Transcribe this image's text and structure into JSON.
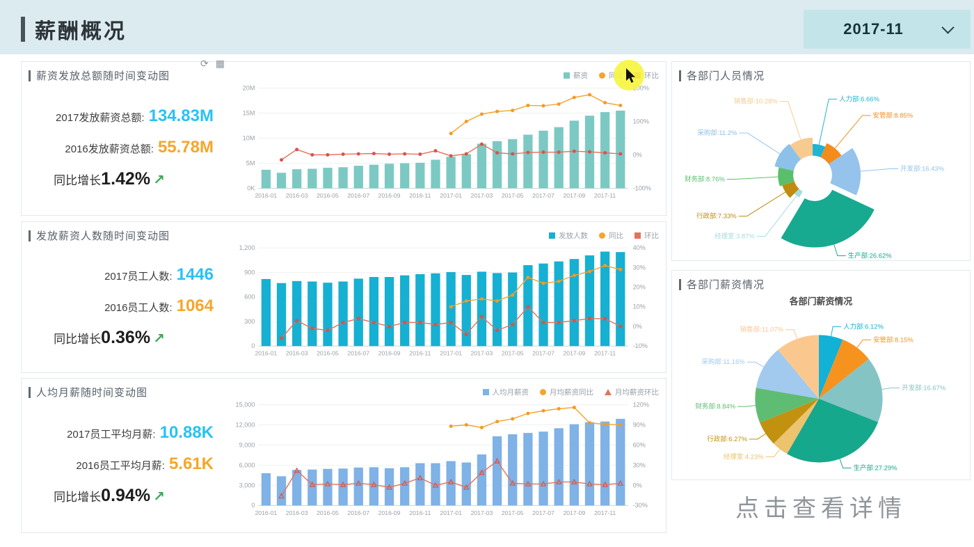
{
  "header": {
    "title": "薪酬概况"
  },
  "date_selector": {
    "value": "2017-11"
  },
  "toolbar": {
    "refresh": "⟳",
    "grid": "▦"
  },
  "footer": {
    "detail_link": "点击查看详情"
  },
  "colors": {
    "stat2017": "#29c1f5",
    "stat2016": "#f7a628",
    "growth_arrow_green": "#3aa857",
    "header_bg": "#dcebf0",
    "date_box_bg": "#c3e5e9"
  },
  "left_panels": [
    {
      "title": "薪资发放总额随时间变动图",
      "stats": [
        {
          "label": "2017发放薪资总额:",
          "value": "134.83M"
        },
        {
          "label": "2016发放薪资总额:",
          "value": "55.78M"
        }
      ],
      "growth": {
        "label": "同比增长",
        "value": "1.42%",
        "arrow": "↗"
      }
    },
    {
      "title": "发放薪资人数随时间变动图",
      "stats": [
        {
          "label": "2017员工人数:",
          "value": "1446"
        },
        {
          "label": "2016员工人数:",
          "value": "1064"
        }
      ],
      "growth": {
        "label": "同比增长",
        "value": "0.36%",
        "arrow": "↗"
      }
    },
    {
      "title": "人均月薪随时间变动图",
      "stats": [
        {
          "label": "2017员工平均月薪:",
          "value": "10.88K"
        },
        {
          "label": "2016员工平均月薪:",
          "value": "5.61K"
        }
      ],
      "growth": {
        "label": "同比增长",
        "value": "0.94%",
        "arrow": "↗"
      }
    }
  ],
  "right_panels": [
    {
      "title": "各部门人员情况"
    },
    {
      "title": "各部门薪资情况"
    }
  ],
  "chart_data": [
    {
      "id": "salary-total-trend",
      "type": "bar",
      "categories": [
        "2016-01",
        "2016-02",
        "2016-03",
        "2016-04",
        "2016-05",
        "2016-06",
        "2016-07",
        "2016-08",
        "2016-09",
        "2016-10",
        "2016-11",
        "2016-12",
        "2017-01",
        "2017-02",
        "2017-03",
        "2017-04",
        "2017-05",
        "2017-06",
        "2017-07",
        "2017-08",
        "2017-09",
        "2017-10",
        "2017-11",
        "2017-12"
      ],
      "left_ticks": [
        "0K",
        "5M",
        "10M",
        "15M",
        "20M"
      ],
      "left_range": [
        0,
        20
      ],
      "right_ticks": [
        "-100%",
        "0%",
        "100%",
        "200%"
      ],
      "right_range": [
        -100,
        200
      ],
      "series": [
        {
          "name": "薪资",
          "type": "bar",
          "axis": "left",
          "color": "#7cc9c4",
          "values": [
            3.7,
            3.1,
            3.8,
            3.9,
            4.1,
            4.2,
            4.5,
            4.7,
            4.9,
            5.0,
            5.1,
            5.7,
            6.3,
            6.8,
            8.9,
            9.4,
            9.8,
            10.7,
            11.5,
            12.2,
            13.5,
            14.5,
            15.2,
            15.5
          ]
        },
        {
          "name": "同比",
          "type": "line",
          "axis": "right",
          "color": "#f5a42c",
          "mcolor": "#f59a23",
          "marker": "circle",
          "values": [
            null,
            null,
            null,
            null,
            null,
            null,
            null,
            null,
            null,
            null,
            null,
            null,
            64,
            100,
            122,
            130,
            133,
            148,
            147,
            152,
            172,
            180,
            156,
            148
          ]
        },
        {
          "name": "环比",
          "type": "line",
          "axis": "right",
          "color": "#e2735e",
          "mcolor": "#d9534a",
          "marker": "circle",
          "values": [
            null,
            -15,
            16,
            0,
            0,
            2,
            3,
            4,
            2,
            3,
            2,
            12,
            -3,
            3,
            32,
            6,
            3,
            7,
            8,
            8,
            11,
            9,
            6,
            3
          ]
        }
      ]
    },
    {
      "id": "headcount-trend",
      "type": "bar",
      "categories": [
        "2016-01",
        "2016-02",
        "2016-03",
        "2016-04",
        "2016-05",
        "2016-06",
        "2016-07",
        "2016-08",
        "2016-09",
        "2016-10",
        "2016-11",
        "2016-12",
        "2017-01",
        "2017-02",
        "2017-03",
        "2017-04",
        "2017-05",
        "2017-06",
        "2017-07",
        "2017-08",
        "2017-09",
        "2017-10",
        "2017-11",
        "2017-12"
      ],
      "left_ticks": [
        "0",
        "300",
        "600",
        "900",
        "1,200"
      ],
      "left_range": [
        0,
        1200
      ],
      "right_ticks": [
        "-10%",
        "0%",
        "10%",
        "20%",
        "30%",
        "40%"
      ],
      "right_range": [
        -10,
        40
      ],
      "series": [
        {
          "name": "发放人数",
          "type": "bar",
          "axis": "left",
          "color": "#16b0d2",
          "values": [
            820,
            770,
            795,
            790,
            775,
            790,
            825,
            845,
            845,
            865,
            880,
            890,
            905,
            870,
            910,
            893,
            900,
            990,
            1010,
            1035,
            1065,
            1110,
            1155,
            1150
          ]
        },
        {
          "name": "同比",
          "type": "line",
          "axis": "right",
          "color": "#f5a42c",
          "mcolor": "#f59a23",
          "marker": "circle",
          "values": [
            null,
            null,
            null,
            null,
            null,
            null,
            null,
            null,
            null,
            null,
            null,
            null,
            10,
            13,
            14,
            13,
            16,
            25,
            22,
            23,
            26,
            28,
            31,
            29
          ]
        },
        {
          "name": "环比",
          "type": "line",
          "axis": "right",
          "color": "#e2735e",
          "mcolor": "#d9534a",
          "marker": "square",
          "values": [
            null,
            -6,
            3,
            -1,
            -2,
            2,
            4,
            2,
            0,
            2,
            2,
            1,
            2,
            -4,
            5,
            -2,
            1,
            10,
            2,
            2,
            3,
            4,
            4,
            0
          ]
        }
      ]
    },
    {
      "id": "avg-salary-trend",
      "type": "bar",
      "categories": [
        "2016-01",
        "2016-02",
        "2016-03",
        "2016-04",
        "2016-05",
        "2016-06",
        "2016-07",
        "2016-08",
        "2016-09",
        "2016-10",
        "2016-11",
        "2016-12",
        "2017-01",
        "2017-02",
        "2017-03",
        "2017-04",
        "2017-05",
        "2017-06",
        "2017-07",
        "2017-08",
        "2017-09",
        "2017-10",
        "2017-11",
        "2017-12"
      ],
      "left_ticks": [
        "0",
        "3,000",
        "6,000",
        "9,000",
        "12,000",
        "15,000"
      ],
      "left_range": [
        0,
        15000
      ],
      "right_ticks": [
        "-30%",
        "0%",
        "30%",
        "60%",
        "90%",
        "120%"
      ],
      "right_range": [
        -30,
        120
      ],
      "series": [
        {
          "name": "人均月薪资",
          "type": "bar",
          "axis": "left",
          "color": "#7fb2e6",
          "values": [
            4800,
            4350,
            5300,
            5350,
            5450,
            5500,
            5650,
            5700,
            5550,
            5700,
            6300,
            6300,
            6600,
            6400,
            7600,
            10300,
            10600,
            10800,
            11000,
            11500,
            12100,
            12400,
            12500,
            12900
          ]
        },
        {
          "name": "月均薪资同比",
          "type": "line",
          "axis": "right",
          "color": "#f5a42c",
          "mcolor": "#f59a23",
          "marker": "circle",
          "values": [
            null,
            null,
            null,
            null,
            null,
            null,
            null,
            null,
            null,
            null,
            null,
            null,
            88,
            90,
            86,
            95,
            99,
            107,
            111,
            114,
            116,
            93,
            91,
            90
          ]
        },
        {
          "name": "月均薪资环比",
          "type": "line",
          "axis": "right",
          "color": "#e2735e",
          "mcolor": "#d9534a",
          "marker": "triangle",
          "values": [
            null,
            -16,
            22,
            1,
            2,
            1,
            3,
            1,
            -3,
            3,
            11,
            0,
            5,
            -3,
            19,
            36,
            3,
            2,
            2,
            5,
            5,
            2,
            1,
            3
          ]
        }
      ]
    },
    {
      "id": "dept-headcount",
      "type": "pie",
      "rose": true,
      "selected": 3,
      "slices": [
        {
          "name": "人力部",
          "pct": "6.66",
          "value": 6.66,
          "color": "#1fb4d1"
        },
        {
          "name": "安管部",
          "pct": "8.85",
          "value": 8.85,
          "color": "#f48c1c"
        },
        {
          "name": "开发部",
          "pct": "16.43",
          "value": 16.43,
          "color": "#95c3eb"
        },
        {
          "name": "生产部",
          "pct": "26.62",
          "value": 26.62,
          "color": "#17aa90"
        },
        {
          "name": "经理室",
          "pct": "3.87",
          "value": 3.87,
          "color": "#a6dbdf"
        },
        {
          "name": "行政部",
          "pct": "7.33",
          "value": 7.33,
          "color": "#bf8c10"
        },
        {
          "name": "财务部",
          "pct": "8.76",
          "value": 8.76,
          "color": "#5abf6b"
        },
        {
          "name": "采购部",
          "pct": "11.2",
          "value": 11.2,
          "color": "#8cc1ea"
        },
        {
          "name": "销售部",
          "pct": "10.28",
          "value": 10.28,
          "color": "#f7ca90"
        }
      ]
    },
    {
      "id": "dept-salary",
      "type": "pie",
      "rose": false,
      "title": "各部门薪资情况",
      "slices": [
        {
          "name": "人力部",
          "pct": "6.12",
          "value": 6.12,
          "color": "#12b1d6"
        },
        {
          "name": "安管部",
          "pct": "8.15",
          "value": 8.15,
          "color": "#f6921e"
        },
        {
          "name": "开发部",
          "pct": "16.67",
          "value": 16.67,
          "color": "#85c4c4"
        },
        {
          "name": "生产部",
          "pct": "27.29",
          "value": 27.29,
          "color": "#16a88c"
        },
        {
          "name": "经理室",
          "pct": "4.23",
          "value": 4.23,
          "color": "#ecc36e"
        },
        {
          "name": "行政部",
          "pct": "6.27",
          "value": 6.27,
          "color": "#c39110"
        },
        {
          "name": "财务部",
          "pct": "8.84",
          "value": 8.84,
          "color": "#5ebd72"
        },
        {
          "name": "采购部",
          "pct": "11.16",
          "value": 11.16,
          "color": "#a2c9ee"
        },
        {
          "name": "销售部",
          "pct": "11.07",
          "value": 11.07,
          "color": "#fac88f"
        }
      ]
    }
  ]
}
